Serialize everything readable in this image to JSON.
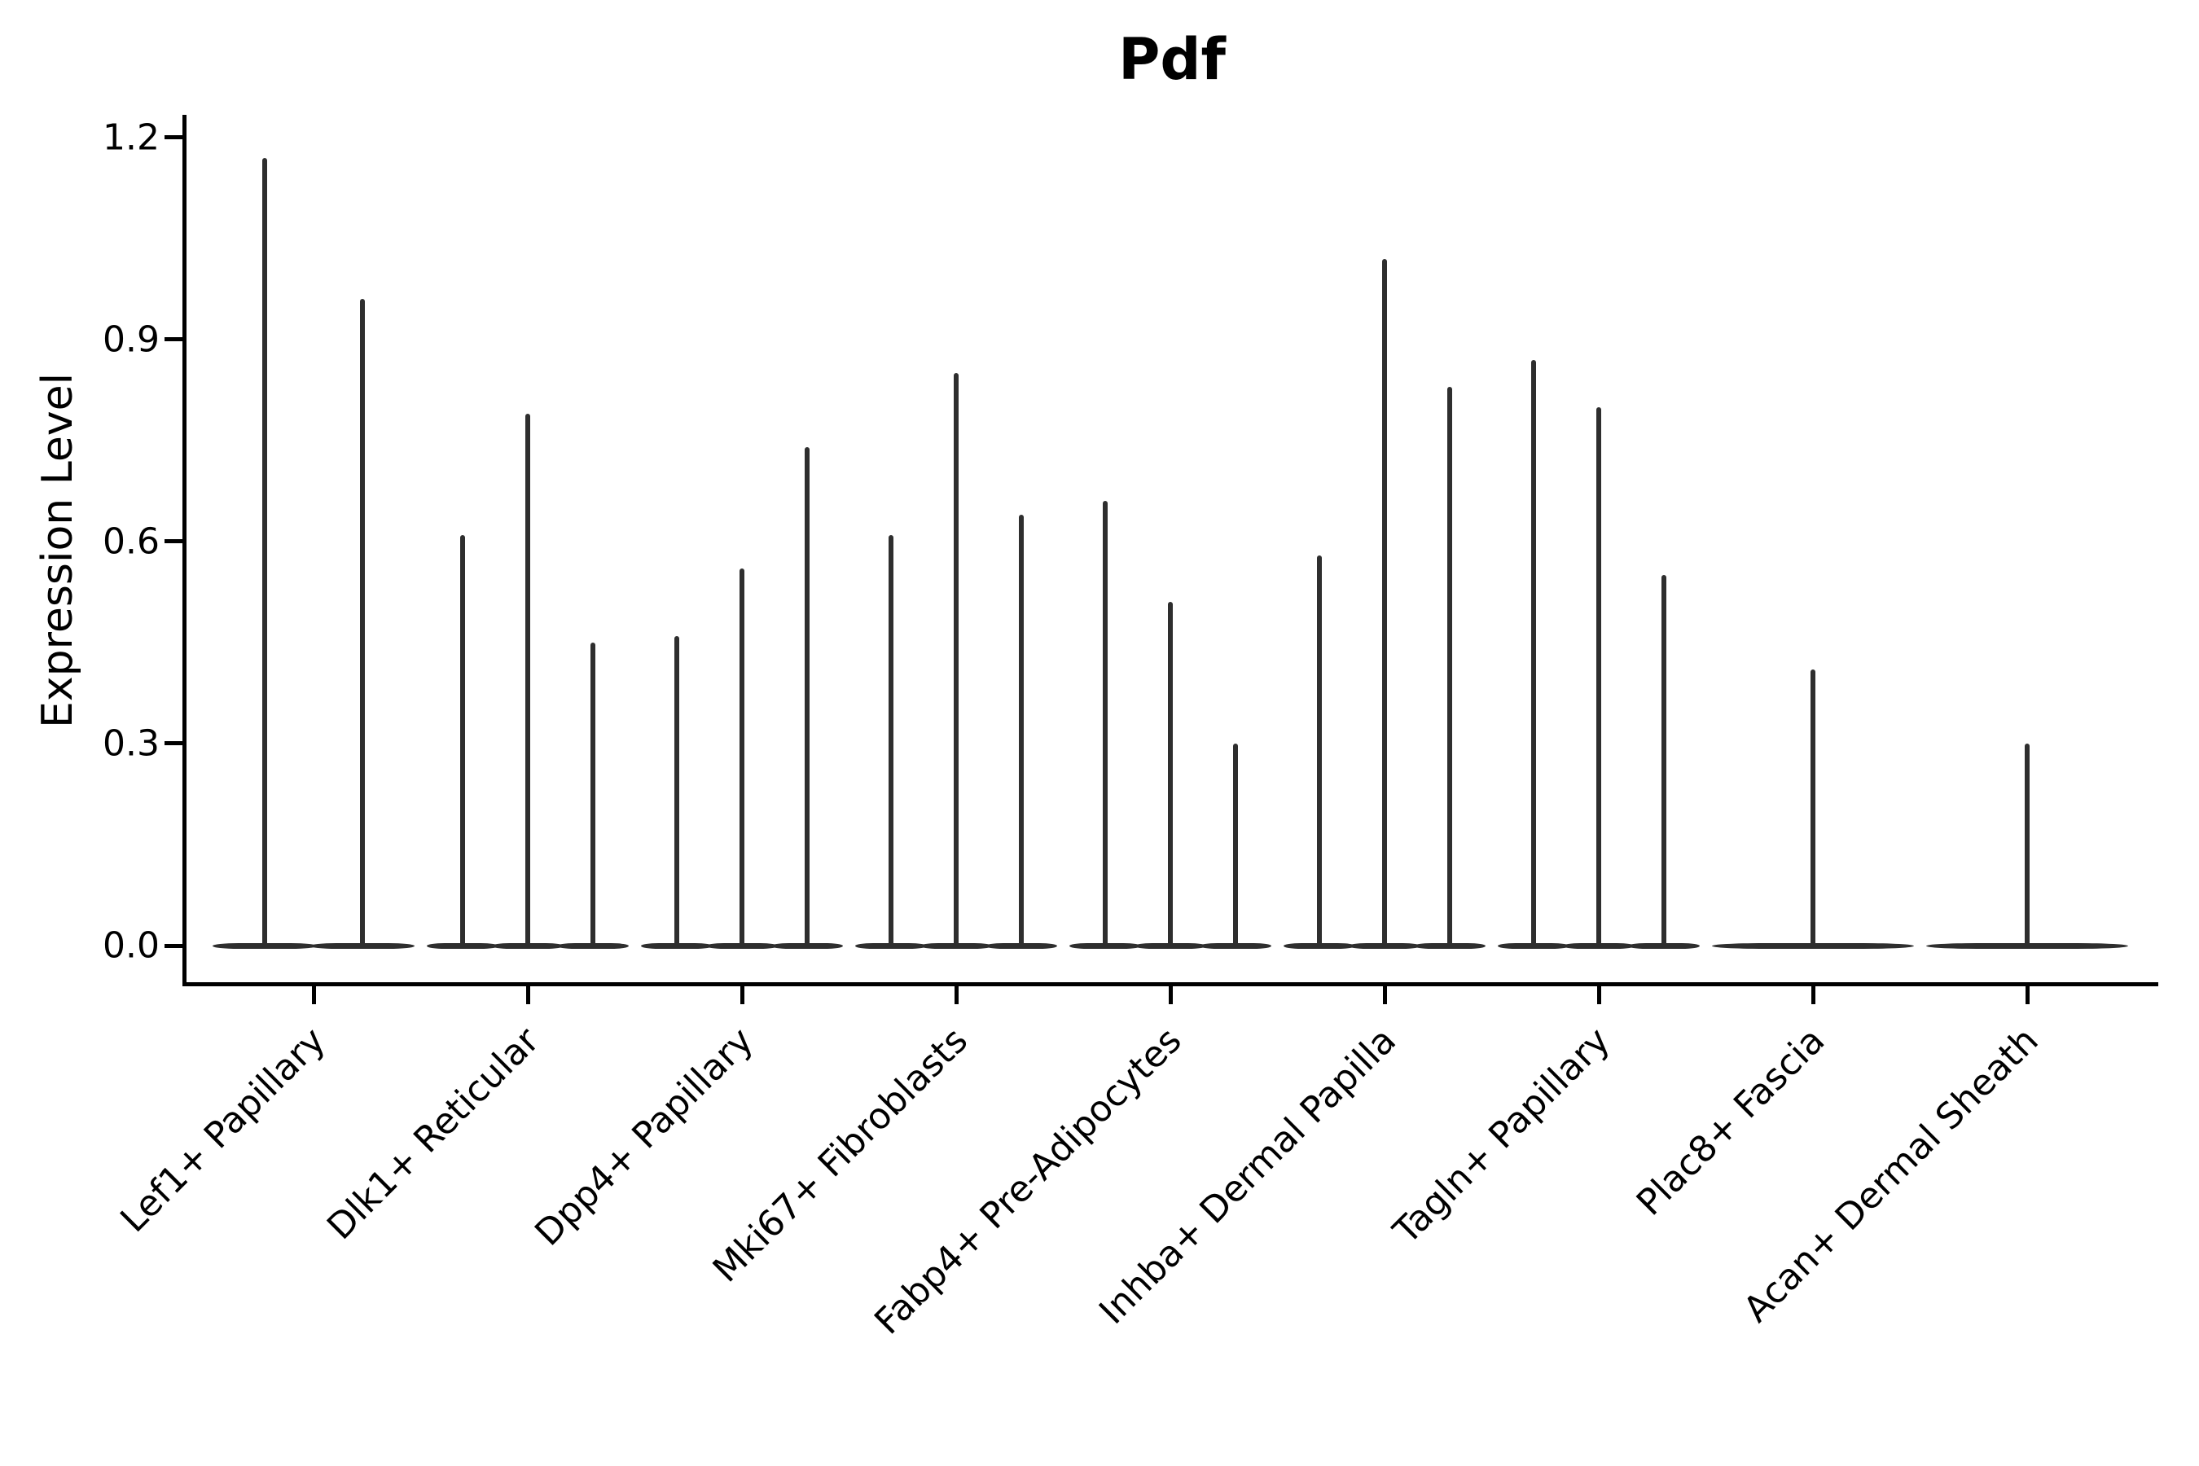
{
  "figure": {
    "title": "Pdf",
    "y_axis": {
      "label": "Expression Level",
      "tick_labels": [
        "0.0",
        "0.3",
        "0.6",
        "0.9",
        "1.2"
      ]
    },
    "x_axis": {
      "tick_labels": [
        "Lef1+ Papillary",
        "Dlk1+ Reticular",
        "Dpp4+ Papillary",
        "Mki67+ Fibroblasts",
        "Fabp4+ Pre-Adipocytes",
        "Inhba+ Dermal Papilla",
        "Tagln+ Papillary",
        "Plac8+ Fascia",
        "Acan+ Dermal Sheath"
      ]
    }
  },
  "chart_data": {
    "type": "violin",
    "title": "Pdf",
    "xlabel": "",
    "ylabel": "Expression Level",
    "ylim": [
      -0.06,
      1.23
    ],
    "yticks": [
      0.0,
      0.3,
      0.6,
      0.9,
      1.2
    ],
    "grid": false,
    "legend": false,
    "categories": [
      "Lef1+ Papillary",
      "Dlk1+ Reticular",
      "Dpp4+ Papillary",
      "Mki67+ Fibroblasts",
      "Fabp4+ Pre-Adipocytes",
      "Inhba+ Dermal Papilla",
      "Tagln+ Papillary",
      "Plac8+ Fascia",
      "Acan+ Dermal Sheath"
    ],
    "series": [
      {
        "category": "Lef1+ Papillary",
        "violin_peaks": [
          1.17,
          0.96
        ]
      },
      {
        "category": "Dlk1+ Reticular",
        "violin_peaks": [
          0.61,
          0.79,
          0.45
        ]
      },
      {
        "category": "Dpp4+ Papillary",
        "violin_peaks": [
          0.46,
          0.56,
          0.74
        ]
      },
      {
        "category": "Mki67+ Fibroblasts",
        "violin_peaks": [
          0.61,
          0.85,
          0.64
        ]
      },
      {
        "category": "Fabp4+ Pre-Adipocytes",
        "violin_peaks": [
          0.66,
          0.51,
          0.3
        ]
      },
      {
        "category": "Inhba+ Dermal Papilla",
        "violin_peaks": [
          0.58,
          1.02,
          0.83
        ]
      },
      {
        "category": "Tagln+ Papillary",
        "violin_peaks": [
          0.87,
          0.8,
          0.55
        ]
      },
      {
        "category": "Plac8+ Fascia",
        "violin_peaks": [
          0.41
        ]
      },
      {
        "category": "Acan+ Dermal Sheath",
        "violin_peaks": [
          0.3
        ]
      }
    ],
    "baseline_value": 0.0,
    "colors": {
      "violin": "#2e2e2e",
      "axis": "#000000",
      "text": "#000000",
      "background": "#ffffff"
    }
  }
}
